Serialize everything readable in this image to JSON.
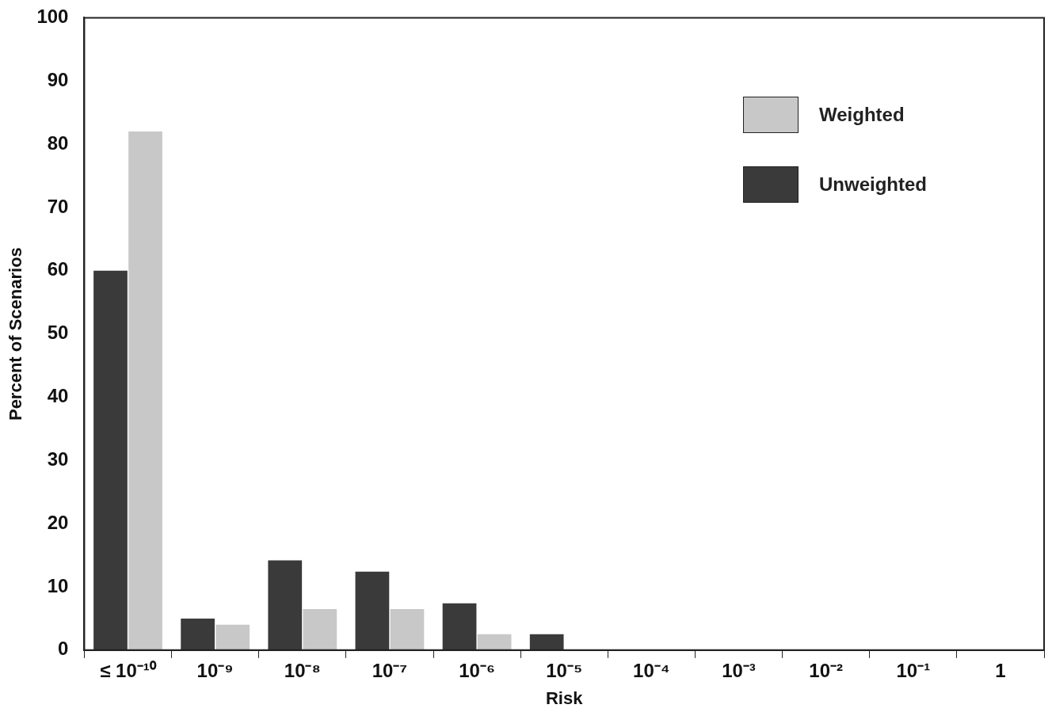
{
  "chart_data": {
    "type": "bar",
    "xlabel": "Risk",
    "ylabel": "Percent of Scenarios",
    "categories": [
      "≤ 10⁻¹⁰",
      "10⁻⁹",
      "10⁻⁸",
      "10⁻⁷",
      "10⁻⁶",
      "10⁻⁵",
      "10⁻⁴",
      "10⁻³",
      "10⁻²",
      "10⁻¹",
      "1"
    ],
    "series": [
      {
        "name": "Unweighted",
        "color": "#3a3a3a",
        "values": [
          60,
          5,
          14.2,
          12.4,
          7.4,
          2.5,
          0,
          0,
          0,
          0,
          0
        ]
      },
      {
        "name": "Weighted",
        "color": "#c8c8c8",
        "values": [
          82,
          4,
          6.5,
          6.5,
          2.5,
          0,
          0,
          0,
          0,
          0,
          0
        ]
      }
    ],
    "ylim": [
      0,
      100
    ],
    "yticks": [
      0,
      10,
      20,
      30,
      40,
      50,
      60,
      70,
      80,
      90,
      100
    ],
    "legend": "top right"
  }
}
